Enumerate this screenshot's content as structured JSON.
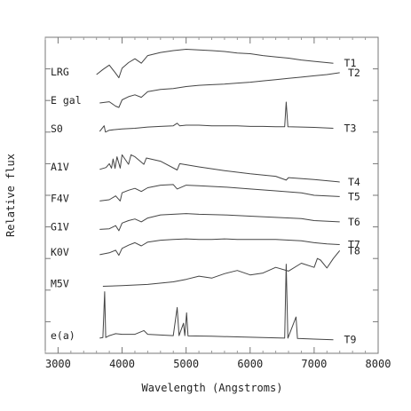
{
  "chart_data": {
    "type": "line",
    "xlabel": "Wavelength (Angstroms)",
    "ylabel": "Relative flux",
    "xlim": [
      2800,
      8000
    ],
    "ylim": [
      0,
      10
    ],
    "x_ticks": [
      3000,
      4000,
      5000,
      6000,
      7000,
      8000
    ],
    "y_ticks": [
      1,
      2,
      3,
      4,
      5,
      6,
      7,
      8,
      9
    ],
    "grid": false,
    "line_color": "#444444",
    "series": [
      {
        "name": "LRG",
        "template": "T1",
        "points": [
          [
            3600,
            8.82
          ],
          [
            3700,
            8.98
          ],
          [
            3800,
            9.12
          ],
          [
            3900,
            8.86
          ],
          [
            3950,
            8.72
          ],
          [
            4000,
            9.02
          ],
          [
            4100,
            9.2
          ],
          [
            4200,
            9.32
          ],
          [
            4300,
            9.18
          ],
          [
            4400,
            9.42
          ],
          [
            4600,
            9.52
          ],
          [
            4800,
            9.58
          ],
          [
            5000,
            9.62
          ],
          [
            5200,
            9.6
          ],
          [
            5400,
            9.58
          ],
          [
            5600,
            9.55
          ],
          [
            5800,
            9.5
          ],
          [
            6000,
            9.48
          ],
          [
            6200,
            9.42
          ],
          [
            6400,
            9.38
          ],
          [
            6600,
            9.34
          ],
          [
            6800,
            9.28
          ],
          [
            7000,
            9.24
          ],
          [
            7300,
            9.18
          ]
        ]
      },
      {
        "name": "E gal",
        "template": "T2",
        "points": [
          [
            3650,
            7.92
          ],
          [
            3800,
            7.96
          ],
          [
            3900,
            7.82
          ],
          [
            3950,
            7.78
          ],
          [
            4000,
            8.02
          ],
          [
            4100,
            8.12
          ],
          [
            4200,
            8.18
          ],
          [
            4300,
            8.1
          ],
          [
            4400,
            8.28
          ],
          [
            4600,
            8.35
          ],
          [
            4800,
            8.38
          ],
          [
            5000,
            8.44
          ],
          [
            5200,
            8.48
          ],
          [
            5400,
            8.5
          ],
          [
            5600,
            8.52
          ],
          [
            5800,
            8.55
          ],
          [
            6000,
            8.58
          ],
          [
            6200,
            8.62
          ],
          [
            6400,
            8.66
          ],
          [
            6600,
            8.7
          ],
          [
            6800,
            8.74
          ],
          [
            7000,
            8.78
          ],
          [
            7200,
            8.82
          ],
          [
            7400,
            8.88
          ]
        ]
      },
      {
        "name": "S0",
        "template": "T3",
        "points": [
          [
            3650,
            7.02
          ],
          [
            3720,
            7.2
          ],
          [
            3740,
            7.0
          ],
          [
            3800,
            7.06
          ],
          [
            4000,
            7.1
          ],
          [
            4200,
            7.12
          ],
          [
            4400,
            7.16
          ],
          [
            4600,
            7.18
          ],
          [
            4800,
            7.2
          ],
          [
            4860,
            7.28
          ],
          [
            4900,
            7.2
          ],
          [
            5000,
            7.22
          ],
          [
            5200,
            7.22
          ],
          [
            5400,
            7.2
          ],
          [
            5600,
            7.2
          ],
          [
            5800,
            7.2
          ],
          [
            6000,
            7.18
          ],
          [
            6200,
            7.18
          ],
          [
            6400,
            7.17
          ],
          [
            6540,
            7.17
          ],
          [
            6563,
            7.95
          ],
          [
            6590,
            7.17
          ],
          [
            6800,
            7.16
          ],
          [
            7000,
            7.15
          ],
          [
            7300,
            7.12
          ]
        ]
      },
      {
        "name": "A1V",
        "template": "T4",
        "points": [
          [
            3650,
            5.82
          ],
          [
            3750,
            5.88
          ],
          [
            3800,
            6.0
          ],
          [
            3835,
            5.86
          ],
          [
            3860,
            6.15
          ],
          [
            3890,
            5.85
          ],
          [
            3920,
            6.22
          ],
          [
            3970,
            5.86
          ],
          [
            4000,
            6.28
          ],
          [
            4101,
            5.98
          ],
          [
            4140,
            6.28
          ],
          [
            4200,
            6.22
          ],
          [
            4340,
            5.98
          ],
          [
            4380,
            6.18
          ],
          [
            4600,
            6.08
          ],
          [
            4861,
            5.8
          ],
          [
            4900,
            6.0
          ],
          [
            5200,
            5.9
          ],
          [
            5600,
            5.78
          ],
          [
            6000,
            5.68
          ],
          [
            6400,
            5.6
          ],
          [
            6563,
            5.48
          ],
          [
            6600,
            5.56
          ],
          [
            7000,
            5.5
          ],
          [
            7400,
            5.42
          ]
        ]
      },
      {
        "name": "F4V",
        "template": "T5",
        "points": [
          [
            3650,
            4.82
          ],
          [
            3800,
            4.86
          ],
          [
            3900,
            4.98
          ],
          [
            3970,
            4.82
          ],
          [
            4000,
            5.08
          ],
          [
            4100,
            5.16
          ],
          [
            4200,
            5.22
          ],
          [
            4300,
            5.12
          ],
          [
            4400,
            5.24
          ],
          [
            4600,
            5.32
          ],
          [
            4800,
            5.34
          ],
          [
            4861,
            5.2
          ],
          [
            5000,
            5.32
          ],
          [
            5200,
            5.3
          ],
          [
            5600,
            5.26
          ],
          [
            6000,
            5.2
          ],
          [
            6400,
            5.14
          ],
          [
            6800,
            5.08
          ],
          [
            7000,
            5.0
          ],
          [
            7400,
            4.96
          ]
        ]
      },
      {
        "name": "G1V",
        "template": "T6",
        "points": [
          [
            3650,
            3.92
          ],
          [
            3800,
            3.94
          ],
          [
            3900,
            4.04
          ],
          [
            3950,
            3.88
          ],
          [
            4000,
            4.12
          ],
          [
            4100,
            4.2
          ],
          [
            4200,
            4.25
          ],
          [
            4300,
            4.16
          ],
          [
            4400,
            4.28
          ],
          [
            4600,
            4.38
          ],
          [
            4800,
            4.4
          ],
          [
            5000,
            4.42
          ],
          [
            5200,
            4.4
          ],
          [
            5600,
            4.38
          ],
          [
            6000,
            4.34
          ],
          [
            6400,
            4.3
          ],
          [
            6800,
            4.26
          ],
          [
            7000,
            4.2
          ],
          [
            7400,
            4.16
          ]
        ]
      },
      {
        "name": "K0V",
        "template": "T7",
        "points": [
          [
            3650,
            3.12
          ],
          [
            3800,
            3.18
          ],
          [
            3900,
            3.26
          ],
          [
            3950,
            3.1
          ],
          [
            4000,
            3.32
          ],
          [
            4100,
            3.42
          ],
          [
            4200,
            3.5
          ],
          [
            4300,
            3.4
          ],
          [
            4400,
            3.52
          ],
          [
            4600,
            3.58
          ],
          [
            4800,
            3.6
          ],
          [
            5000,
            3.62
          ],
          [
            5200,
            3.6
          ],
          [
            5400,
            3.6
          ],
          [
            5600,
            3.62
          ],
          [
            5800,
            3.6
          ],
          [
            6000,
            3.6
          ],
          [
            6400,
            3.6
          ],
          [
            6800,
            3.56
          ],
          [
            7000,
            3.5
          ],
          [
            7200,
            3.46
          ],
          [
            7400,
            3.44
          ]
        ]
      },
      {
        "name": "M5V",
        "template": "T8",
        "points": [
          [
            3700,
            2.12
          ],
          [
            4000,
            2.14
          ],
          [
            4400,
            2.18
          ],
          [
            4800,
            2.26
          ],
          [
            5000,
            2.34
          ],
          [
            5200,
            2.44
          ],
          [
            5400,
            2.38
          ],
          [
            5600,
            2.52
          ],
          [
            5800,
            2.62
          ],
          [
            6000,
            2.48
          ],
          [
            6200,
            2.54
          ],
          [
            6400,
            2.72
          ],
          [
            6600,
            2.6
          ],
          [
            6800,
            2.85
          ],
          [
            7000,
            2.72
          ],
          [
            7050,
            3.0
          ],
          [
            7100,
            2.95
          ],
          [
            7200,
            2.7
          ],
          [
            7300,
            3.0
          ],
          [
            7400,
            3.25
          ]
        ]
      },
      {
        "name": "e(a)",
        "template": "T9",
        "points": [
          [
            3650,
            0.48
          ],
          [
            3700,
            0.5
          ],
          [
            3727,
            1.95
          ],
          [
            3745,
            0.5
          ],
          [
            3800,
            0.56
          ],
          [
            3900,
            0.62
          ],
          [
            4000,
            0.6
          ],
          [
            4100,
            0.6
          ],
          [
            4200,
            0.6
          ],
          [
            4340,
            0.72
          ],
          [
            4400,
            0.6
          ],
          [
            4600,
            0.58
          ],
          [
            4800,
            0.56
          ],
          [
            4861,
            1.45
          ],
          [
            4890,
            0.56
          ],
          [
            4959,
            0.95
          ],
          [
            4980,
            0.56
          ],
          [
            5007,
            1.28
          ],
          [
            5030,
            0.55
          ],
          [
            5400,
            0.54
          ],
          [
            5800,
            0.52
          ],
          [
            6200,
            0.5
          ],
          [
            6540,
            0.48
          ],
          [
            6563,
            2.82
          ],
          [
            6590,
            0.48
          ],
          [
            6717,
            1.15
          ],
          [
            6740,
            0.47
          ],
          [
            7000,
            0.45
          ],
          [
            7300,
            0.43
          ]
        ]
      }
    ]
  }
}
